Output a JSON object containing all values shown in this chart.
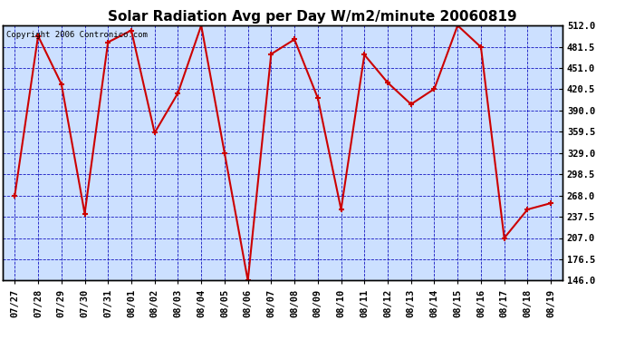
{
  "title": "Solar Radiation Avg per Day W/m2/minute 20060819",
  "copyright": "Copyright 2006 Contronico.com",
  "dates": [
    "07/27",
    "07/28",
    "07/29",
    "07/30",
    "07/31",
    "08/01",
    "08/02",
    "08/03",
    "08/04",
    "08/05",
    "08/06",
    "08/07",
    "08/08",
    "08/09",
    "08/10",
    "08/11",
    "08/12",
    "08/13",
    "08/14",
    "08/15",
    "08/16",
    "08/17",
    "08/18",
    "08/19"
  ],
  "values": [
    268,
    497,
    428,
    242,
    488,
    505,
    358,
    415,
    512,
    329,
    146,
    471,
    492,
    408,
    248,
    470,
    430,
    399,
    421,
    512,
    481,
    207,
    248,
    257
  ],
  "ylim": [
    146.0,
    512.0
  ],
  "yticks": [
    146.0,
    176.5,
    207.0,
    237.5,
    268.0,
    298.5,
    329.0,
    359.5,
    390.0,
    420.5,
    451.0,
    481.5,
    512.0
  ],
  "line_color": "#cc0000",
  "marker_color": "#cc0000",
  "bg_color": "#ffffff",
  "plot_bg_color": "#cce0ff",
  "grid_color": "#0000bb",
  "title_fontsize": 11,
  "tick_fontsize": 7.5,
  "copyright_fontsize": 6.5
}
